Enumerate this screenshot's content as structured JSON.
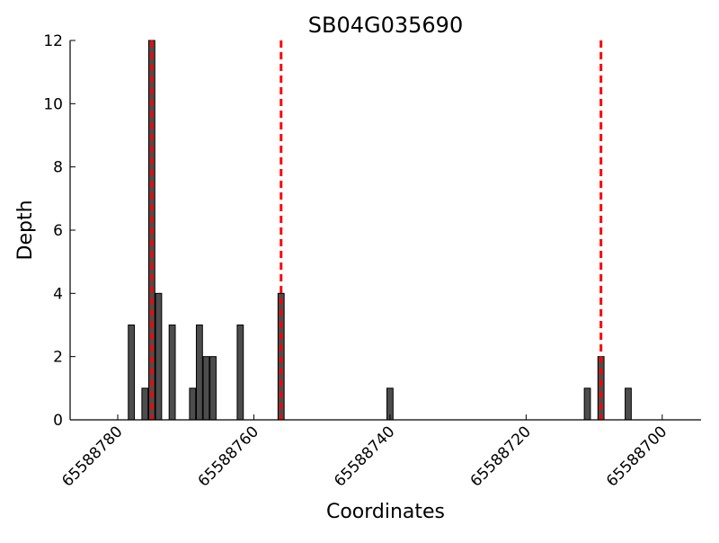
{
  "chart_data": {
    "type": "bar",
    "title": "SB04G035690",
    "x_label": "Coordinates",
    "y_label": "Depth",
    "x": [
      65588778,
      65588776,
      65588775,
      65588774,
      65588772,
      65588769,
      65588768,
      65588767,
      65588766,
      65588762,
      65588756,
      65588740,
      65588711,
      65588709,
      65588705
    ],
    "values": [
      3,
      1,
      12,
      4,
      3,
      1,
      3,
      2,
      2,
      3,
      4,
      1,
      1,
      2,
      1
    ],
    "color": "#4d4d4d",
    "edge_color": "#000000",
    "vlines": [
      65588775,
      65588756,
      65588709
    ],
    "vline_color": "#ff0000",
    "xlim": [
      65588787,
      65588694.3
    ],
    "xticks": [
      65588780,
      65588760,
      65588740,
      65588720,
      65588700
    ],
    "ylim": [
      0,
      12
    ],
    "yticks": [
      0,
      2,
      4,
      6,
      8,
      10,
      12
    ],
    "grid": false
  }
}
